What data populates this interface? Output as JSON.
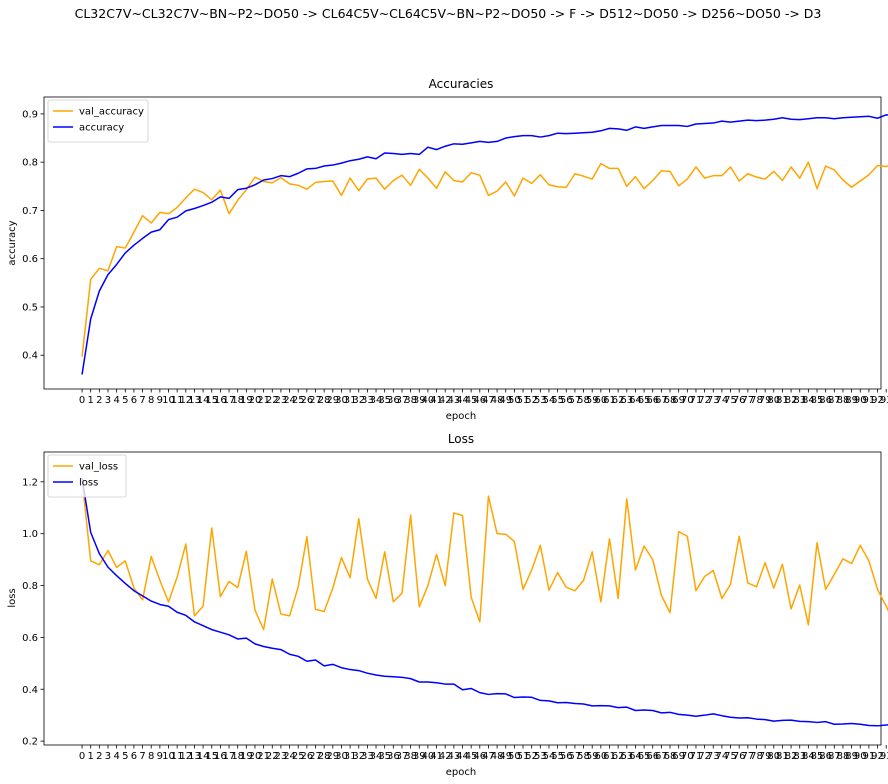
{
  "suptitle": "CL32C7V~CL32C7V~BN~P2~DO50 -> CL64C5V~CL64C5V~BN~P2~DO50 -> F -> D512~DO50 -> D256~DO50 -> D3",
  "chart_data": [
    {
      "type": "line",
      "title": "Accuracies",
      "xlabel": "epoch",
      "ylabel": "accuracy",
      "xlim": [
        -4.4,
        92.4
      ],
      "ylim": [
        0.33,
        0.935
      ],
      "yticks": [
        0.4,
        0.5,
        0.6,
        0.7,
        0.8,
        0.9
      ],
      "grid": false,
      "legend_position": "upper-left",
      "series": [
        {
          "name": "val_accuracy",
          "color": "#ffa500",
          "values": [
            0.397,
            0.557,
            0.58,
            0.575,
            0.625,
            0.622,
            0.655,
            0.689,
            0.674,
            0.696,
            0.693,
            0.706,
            0.726,
            0.744,
            0.737,
            0.722,
            0.742,
            0.693,
            0.721,
            0.743,
            0.769,
            0.76,
            0.757,
            0.768,
            0.755,
            0.752,
            0.744,
            0.758,
            0.76,
            0.761,
            0.731,
            0.767,
            0.741,
            0.765,
            0.767,
            0.744,
            0.762,
            0.773,
            0.752,
            0.785,
            0.767,
            0.746,
            0.78,
            0.762,
            0.759,
            0.778,
            0.773,
            0.731,
            0.74,
            0.759,
            0.73,
            0.767,
            0.756,
            0.774,
            0.753,
            0.749,
            0.748,
            0.776,
            0.771,
            0.765,
            0.797,
            0.787,
            0.787,
            0.75,
            0.77,
            0.745,
            0.762,
            0.782,
            0.781,
            0.751,
            0.765,
            0.79,
            0.767,
            0.772,
            0.772,
            0.79,
            0.761,
            0.776,
            0.769,
            0.765,
            0.781,
            0.762,
            0.79,
            0.767,
            0.8,
            0.745,
            0.792,
            0.784,
            0.763,
            0.748,
            0.761,
            0.774,
            0.793,
            0.791,
            0.797,
            0.777,
            0.755,
            0.771,
            0.769,
            0.754
          ]
        },
        {
          "name": "accuracy",
          "color": "#0000ff",
          "values": [
            0.36,
            0.475,
            0.533,
            0.567,
            0.588,
            0.612,
            0.628,
            0.642,
            0.655,
            0.66,
            0.681,
            0.686,
            0.699,
            0.704,
            0.71,
            0.717,
            0.728,
            0.725,
            0.743,
            0.746,
            0.753,
            0.763,
            0.766,
            0.772,
            0.77,
            0.777,
            0.786,
            0.787,
            0.792,
            0.794,
            0.798,
            0.803,
            0.806,
            0.811,
            0.807,
            0.819,
            0.818,
            0.816,
            0.818,
            0.816,
            0.831,
            0.826,
            0.833,
            0.838,
            0.837,
            0.84,
            0.843,
            0.841,
            0.843,
            0.85,
            0.853,
            0.855,
            0.855,
            0.852,
            0.855,
            0.86,
            0.859,
            0.86,
            0.861,
            0.862,
            0.865,
            0.87,
            0.869,
            0.866,
            0.873,
            0.87,
            0.873,
            0.876,
            0.876,
            0.876,
            0.874,
            0.879,
            0.88,
            0.881,
            0.885,
            0.883,
            0.885,
            0.887,
            0.886,
            0.887,
            0.889,
            0.892,
            0.889,
            0.888,
            0.89,
            0.892,
            0.892,
            0.89,
            0.892,
            0.893,
            0.894,
            0.895,
            0.891,
            0.898,
            0.897,
            0.896,
            0.894,
            0.9,
            0.899,
            0.906
          ]
        }
      ]
    },
    {
      "type": "line",
      "title": "Loss",
      "xlabel": "epoch",
      "ylabel": "loss",
      "xlim": [
        -4.4,
        92.4
      ],
      "ylim": [
        0.185,
        1.315
      ],
      "yticks": [
        0.2,
        0.4,
        0.6,
        0.8,
        1.0,
        1.2
      ],
      "grid": false,
      "legend_position": "upper-left",
      "series": [
        {
          "name": "val_loss",
          "color": "#ffa500",
          "values": [
            1.21,
            0.895,
            0.88,
            0.935,
            0.87,
            0.895,
            0.79,
            0.745,
            0.912,
            0.82,
            0.737,
            0.833,
            0.96,
            0.683,
            0.72,
            1.022,
            0.757,
            0.816,
            0.792,
            0.932,
            0.705,
            0.63,
            0.825,
            0.69,
            0.683,
            0.795,
            0.988,
            0.708,
            0.7,
            0.79,
            0.908,
            0.83,
            1.058,
            0.825,
            0.75,
            0.93,
            0.737,
            0.77,
            1.072,
            0.718,
            0.8,
            0.92,
            0.8,
            1.08,
            1.07,
            0.755,
            0.66,
            1.145,
            1.0,
            0.998,
            0.97,
            0.785,
            0.86,
            0.955,
            0.782,
            0.85,
            0.793,
            0.78,
            0.82,
            0.93,
            0.737,
            0.98,
            0.75,
            1.134,
            0.86,
            0.952,
            0.9,
            0.762,
            0.695,
            1.008,
            0.99,
            0.78,
            0.835,
            0.858,
            0.75,
            0.805,
            0.99,
            0.81,
            0.795,
            0.888,
            0.79,
            0.882,
            0.71,
            0.802,
            0.648,
            0.965,
            0.785,
            0.843,
            0.903,
            0.885,
            0.955,
            0.895,
            0.785,
            0.72,
            0.65,
            0.695,
            0.938,
            0.8,
            0.755,
            1.068
          ]
        },
        {
          "name": "loss",
          "color": "#0000ff",
          "values": [
            1.215,
            1.005,
            0.923,
            0.871,
            0.838,
            0.808,
            0.78,
            0.76,
            0.74,
            0.727,
            0.72,
            0.697,
            0.685,
            0.66,
            0.645,
            0.63,
            0.62,
            0.61,
            0.594,
            0.597,
            0.575,
            0.565,
            0.558,
            0.553,
            0.535,
            0.527,
            0.508,
            0.513,
            0.49,
            0.496,
            0.483,
            0.476,
            0.472,
            0.462,
            0.455,
            0.45,
            0.448,
            0.446,
            0.441,
            0.428,
            0.428,
            0.425,
            0.42,
            0.42,
            0.398,
            0.403,
            0.387,
            0.38,
            0.383,
            0.382,
            0.368,
            0.37,
            0.369,
            0.357,
            0.355,
            0.348,
            0.349,
            0.345,
            0.343,
            0.336,
            0.337,
            0.336,
            0.329,
            0.331,
            0.318,
            0.32,
            0.318,
            0.309,
            0.311,
            0.303,
            0.3,
            0.296,
            0.3,
            0.305,
            0.298,
            0.292,
            0.289,
            0.29,
            0.285,
            0.283,
            0.277,
            0.28,
            0.281,
            0.276,
            0.275,
            0.272,
            0.275,
            0.265,
            0.266,
            0.268,
            0.265,
            0.26,
            0.259,
            0.262,
            0.264,
            0.255,
            0.257,
            0.256,
            0.25,
            0.24
          ]
        }
      ]
    }
  ]
}
